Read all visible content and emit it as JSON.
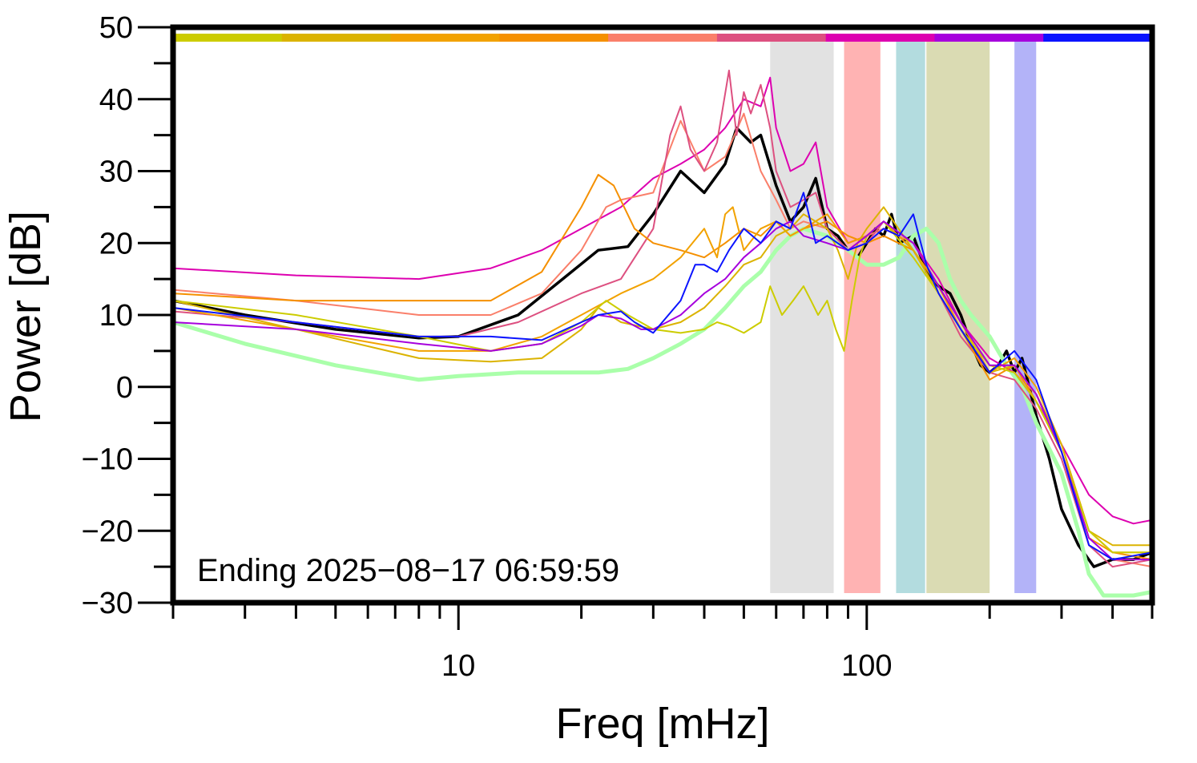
{
  "chart_data": {
    "type": "line",
    "xlabel": "Freq [mHz]",
    "ylabel": "Power [dB]",
    "x_scale": "log",
    "xlim": [
      2,
      500
    ],
    "ylim": [
      -30,
      50
    ],
    "x_tick_labels": [
      {
        "value": 10,
        "label": "10"
      },
      {
        "value": 100,
        "label": "100"
      }
    ],
    "y_tick_labels": [
      {
        "value": 50,
        "label": "50"
      },
      {
        "value": 40,
        "label": "40"
      },
      {
        "value": 30,
        "label": "30"
      },
      {
        "value": 20,
        "label": "20"
      },
      {
        "value": 10,
        "label": "10"
      },
      {
        "value": 0,
        "label": "0"
      },
      {
        "value": -10,
        "label": "−10"
      },
      {
        "value": -20,
        "label": "−20"
      },
      {
        "value": -30,
        "label": "−30"
      }
    ],
    "annotation": "Ending 2025−08−17 06:59:59",
    "grid": false,
    "legend": "none",
    "bands": [
      {
        "x0": 58,
        "x1": 83,
        "color": "#e2e2e2"
      },
      {
        "x0": 88,
        "x1": 108,
        "color": "#ffb3b3"
      },
      {
        "x0": 118,
        "x1": 139,
        "color": "#b3dcdf"
      },
      {
        "x0": 140,
        "x1": 200,
        "color": "#dadbb3"
      },
      {
        "x0": 230,
        "x1": 260,
        "color": "#b3b3f8"
      }
    ],
    "color_bar": [
      "#cccc00",
      "#dbb300",
      "#f2a200",
      "#f59000",
      "#fa7f6a",
      "#dd5080",
      "#dd00b0",
      "#a600dd",
      "#0b14ff"
    ],
    "series": [
      {
        "color": "#000000",
        "width": 3.5,
        "x": [
          2,
          3,
          5,
          8,
          10,
          14,
          18,
          22,
          26,
          30,
          35,
          40,
          45,
          48,
          52,
          55,
          60,
          65,
          70,
          75,
          80,
          85,
          90,
          95,
          100,
          105,
          110,
          115,
          120,
          130,
          140,
          150,
          160,
          170,
          180,
          190,
          200,
          210,
          220,
          230,
          240,
          250,
          260,
          280,
          300,
          330,
          360,
          400,
          450,
          500
        ],
        "y": [
          12,
          10,
          8,
          6.8,
          7,
          10,
          15,
          19,
          19.5,
          24,
          30,
          27,
          31,
          36,
          34,
          35,
          28,
          23,
          25,
          29,
          22,
          21,
          19,
          18,
          20,
          22,
          21,
          24,
          20,
          21,
          16,
          14,
          13,
          10,
          6,
          3,
          2,
          3,
          5,
          2,
          4,
          0,
          -4,
          -10,
          -17,
          -22,
          -25,
          -24,
          -24,
          -23
        ]
      },
      {
        "color": "#aaffaa",
        "width": 5,
        "x": [
          2,
          3,
          5,
          8,
          10,
          14,
          18,
          22,
          26,
          30,
          35,
          40,
          45,
          50,
          55,
          60,
          65,
          70,
          80,
          90,
          100,
          110,
          120,
          130,
          140,
          150,
          160,
          170,
          180,
          200,
          220,
          240,
          260,
          300,
          330,
          350,
          380,
          400,
          450,
          500
        ],
        "y": [
          9,
          6,
          3,
          1,
          1.5,
          2,
          2,
          2,
          2.5,
          4,
          6,
          8,
          11,
          14,
          16,
          19,
          21,
          22,
          21,
          19,
          17,
          17,
          18,
          21,
          22,
          20,
          15,
          12,
          10,
          7,
          3,
          0,
          -5,
          -12,
          -20,
          -26,
          -29,
          -29,
          -29,
          -28.5
        ]
      },
      {
        "color": "#dd00b0",
        "width": 2,
        "x": [
          2,
          4,
          8,
          12,
          16,
          20,
          25,
          30,
          35,
          40,
          45,
          50,
          55,
          58,
          60,
          65,
          70,
          75,
          80,
          90,
          100,
          110,
          130,
          150,
          170,
          200,
          230,
          260,
          300,
          350,
          400,
          450,
          500
        ],
        "y": [
          16.5,
          15.5,
          15,
          16.5,
          19,
          22,
          25,
          29,
          31,
          33,
          36,
          40,
          39,
          43,
          36,
          30,
          31,
          34,
          25,
          20,
          21,
          23,
          20,
          15,
          9,
          4,
          2,
          -2,
          -8,
          -15,
          -18,
          -19,
          -18.5
        ]
      },
      {
        "color": "#fa7f6a",
        "width": 2,
        "x": [
          2,
          4,
          8,
          12,
          16,
          20,
          23,
          25,
          30,
          35,
          40,
          45,
          50,
          55,
          60,
          65,
          70,
          80,
          90,
          100,
          110,
          130,
          150,
          170,
          200,
          230,
          260,
          300,
          350,
          400,
          500
        ],
        "y": [
          13.5,
          12,
          10,
          10,
          13,
          19,
          25,
          26,
          27,
          37,
          30,
          32,
          38,
          30,
          26,
          22,
          23,
          22,
          19,
          21,
          22,
          20,
          14,
          8,
          3,
          2,
          -1,
          -9,
          -22,
          -24,
          -25
        ]
      },
      {
        "color": "#dd5080",
        "width": 2,
        "x": [
          2,
          4,
          8,
          10,
          14,
          20,
          25,
          30,
          33,
          35,
          37,
          40,
          43,
          46,
          48,
          50,
          52,
          55,
          58,
          60,
          65,
          70,
          75,
          80,
          90,
          100,
          110,
          130,
          150,
          170,
          200,
          230,
          260,
          300,
          350,
          400,
          500
        ],
        "y": [
          10.5,
          9,
          7,
          7,
          9,
          13,
          15,
          22,
          35,
          39,
          33,
          30,
          34,
          44,
          35,
          41,
          38,
          42,
          36,
          30,
          25,
          26,
          27,
          22,
          19,
          20,
          23,
          19,
          13,
          7,
          2,
          1,
          -3,
          -10,
          -22,
          -25,
          -24
        ]
      },
      {
        "color": "#f59000",
        "width": 2,
        "x": [
          2,
          4,
          8,
          12,
          16,
          20,
          22,
          24,
          27,
          30,
          35,
          40,
          45,
          50,
          55,
          60,
          65,
          70,
          80,
          90,
          100,
          110,
          130,
          150,
          170,
          200,
          230,
          260,
          300,
          350,
          400,
          500
        ],
        "y": [
          13,
          12,
          12,
          12,
          16,
          25,
          29.5,
          28,
          22,
          20,
          19,
          18,
          20,
          22,
          21,
          23,
          21,
          22,
          23,
          21,
          20,
          21,
          19,
          14,
          8,
          1,
          3,
          -2,
          -9,
          -21,
          -23,
          -24
        ]
      },
      {
        "color": "#f2a200",
        "width": 2,
        "x": [
          2,
          4,
          8,
          12,
          16,
          20,
          25,
          30,
          35,
          40,
          43,
          45,
          47,
          50,
          55,
          60,
          65,
          70,
          80,
          90,
          100,
          110,
          130,
          150,
          170,
          200,
          230,
          260,
          300,
          350,
          400,
          500
        ],
        "y": [
          11,
          8,
          5,
          5,
          7,
          10,
          13,
          15,
          18,
          22,
          18,
          24,
          25,
          19,
          22,
          23,
          21,
          22,
          24,
          20,
          21,
          23,
          19,
          14,
          9,
          2,
          4,
          0,
          -8,
          -20,
          -23,
          -23
        ]
      },
      {
        "color": "#dbb300",
        "width": 2,
        "x": [
          2,
          4,
          8,
          12,
          16,
          20,
          22,
          25,
          30,
          35,
          40,
          45,
          50,
          55,
          60,
          65,
          70,
          75,
          80,
          85,
          90,
          95,
          100,
          110,
          130,
          150,
          170,
          200,
          230,
          260,
          300,
          350,
          400,
          500
        ],
        "y": [
          12,
          8,
          4,
          3.5,
          4,
          8,
          11,
          9,
          8,
          9,
          11,
          14,
          17,
          18,
          21,
          22,
          24,
          23,
          22,
          19,
          15,
          20,
          22,
          25,
          19,
          13,
          8,
          2,
          3,
          -1,
          -8,
          -20,
          -22,
          -22
        ]
      },
      {
        "color": "#cccc00",
        "width": 2,
        "x": [
          2,
          4,
          8,
          12,
          16,
          20,
          23,
          26,
          30,
          35,
          40,
          43,
          46,
          50,
          55,
          58,
          62,
          66,
          70,
          73,
          76,
          80,
          84,
          88,
          92,
          96,
          100,
          110,
          130,
          150,
          170,
          200,
          230,
          260,
          300,
          350,
          400,
          500
        ],
        "y": [
          12,
          10,
          7,
          5,
          6,
          9,
          12,
          10,
          8,
          7.5,
          8,
          9,
          8.5,
          7.5,
          9,
          14,
          10,
          12,
          14,
          12,
          10,
          12,
          8,
          5,
          12,
          18,
          21,
          23,
          18,
          13,
          8,
          3,
          2,
          -2,
          -9,
          -20,
          -23,
          -23
        ]
      },
      {
        "color": "#a600dd",
        "width": 2,
        "x": [
          2,
          4,
          8,
          12,
          16,
          20,
          22,
          25,
          28,
          30,
          35,
          40,
          45,
          50,
          55,
          60,
          65,
          70,
          80,
          90,
          100,
          110,
          130,
          150,
          170,
          200,
          230,
          260,
          300,
          350,
          400,
          500
        ],
        "y": [
          9,
          8,
          6,
          5,
          6,
          8.5,
          10,
          9.5,
          8,
          8,
          10,
          13,
          15,
          18,
          20,
          22,
          23,
          21,
          20,
          19,
          21,
          23,
          20,
          14,
          9,
          3,
          3,
          -1,
          -9,
          -21,
          -24,
          -24
        ]
      },
      {
        "color": "#0b14ff",
        "width": 2,
        "x": [
          2,
          4,
          8,
          12,
          16,
          20,
          22,
          25,
          27,
          30,
          35,
          38,
          40,
          43,
          46,
          50,
          55,
          60,
          65,
          70,
          75,
          80,
          90,
          100,
          110,
          120,
          130,
          140,
          150,
          170,
          200,
          230,
          260,
          300,
          350,
          400,
          500
        ],
        "y": [
          11,
          9,
          7,
          7,
          6.5,
          9,
          10,
          10.5,
          9,
          7.5,
          12,
          17,
          17,
          16,
          19,
          22,
          20,
          23,
          22,
          27,
          20,
          21,
          19,
          20,
          22,
          21,
          24,
          17,
          13,
          8,
          2,
          5,
          1,
          -9,
          -22,
          -24,
          -23
        ]
      }
    ]
  }
}
